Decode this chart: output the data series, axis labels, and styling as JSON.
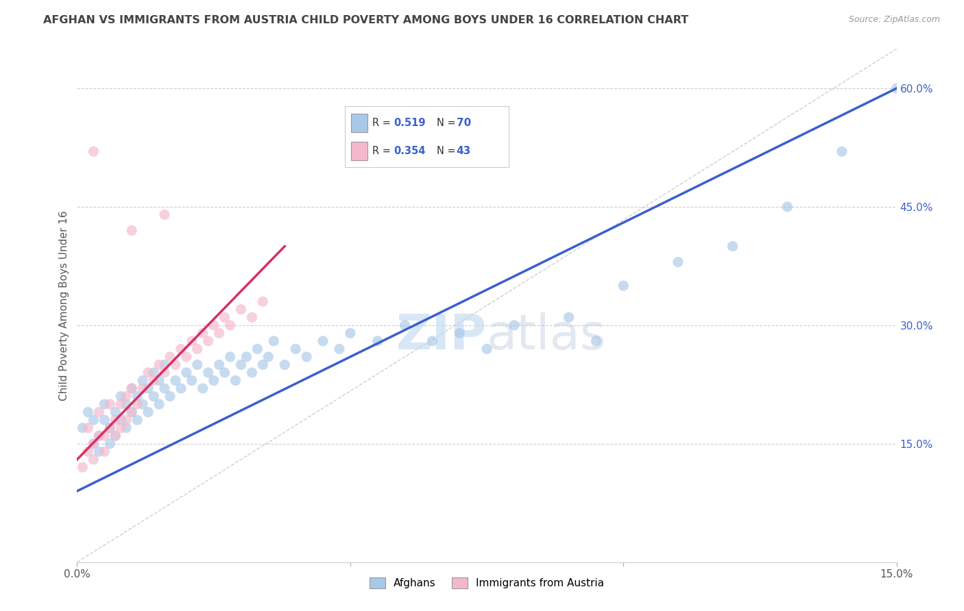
{
  "title": "AFGHAN VS IMMIGRANTS FROM AUSTRIA CHILD POVERTY AMONG BOYS UNDER 16 CORRELATION CHART",
  "source": "Source: ZipAtlas.com",
  "ylabel": "Child Poverty Among Boys Under 16",
  "xlim": [
    0.0,
    0.15
  ],
  "ylim": [
    0.0,
    0.65
  ],
  "xticks": [
    0.0,
    0.15
  ],
  "xtick_labels": [
    "0.0%",
    "15.0%"
  ],
  "ytick_positions": [
    0.15,
    0.3,
    0.45,
    0.6
  ],
  "ytick_labels": [
    "15.0%",
    "30.0%",
    "45.0%",
    "60.0%"
  ],
  "blue_color": "#a8c8e8",
  "pink_color": "#f4b8cc",
  "blue_line_color": "#3a5fcd",
  "pink_line_color": "#d63060",
  "legend_blue_label": "Afghans",
  "legend_pink_label": "Immigrants from Austria",
  "R_blue": 0.519,
  "N_blue": 70,
  "R_pink": 0.354,
  "N_pink": 43,
  "watermark_zip": "ZIP",
  "watermark_atlas": "atlas",
  "background_color": "#ffffff",
  "grid_color": "#cccccc",
  "title_color": "#444444",
  "blue_scatter_x": [
    0.001,
    0.002,
    0.003,
    0.003,
    0.004,
    0.004,
    0.005,
    0.005,
    0.006,
    0.006,
    0.007,
    0.007,
    0.008,
    0.008,
    0.009,
    0.009,
    0.01,
    0.01,
    0.011,
    0.011,
    0.012,
    0.012,
    0.013,
    0.013,
    0.014,
    0.014,
    0.015,
    0.015,
    0.016,
    0.016,
    0.017,
    0.018,
    0.019,
    0.02,
    0.021,
    0.022,
    0.023,
    0.024,
    0.025,
    0.026,
    0.027,
    0.028,
    0.029,
    0.03,
    0.031,
    0.032,
    0.033,
    0.034,
    0.035,
    0.036,
    0.038,
    0.04,
    0.042,
    0.045,
    0.048,
    0.05,
    0.055,
    0.06,
    0.065,
    0.07,
    0.075,
    0.08,
    0.09,
    0.095,
    0.1,
    0.11,
    0.12,
    0.13,
    0.14,
    0.15
  ],
  "blue_scatter_y": [
    0.17,
    0.19,
    0.15,
    0.18,
    0.14,
    0.16,
    0.18,
    0.2,
    0.15,
    0.17,
    0.16,
    0.19,
    0.18,
    0.21,
    0.17,
    0.2,
    0.19,
    0.22,
    0.18,
    0.21,
    0.2,
    0.23,
    0.19,
    0.22,
    0.21,
    0.24,
    0.2,
    0.23,
    0.22,
    0.25,
    0.21,
    0.23,
    0.22,
    0.24,
    0.23,
    0.25,
    0.22,
    0.24,
    0.23,
    0.25,
    0.24,
    0.26,
    0.23,
    0.25,
    0.26,
    0.24,
    0.27,
    0.25,
    0.26,
    0.28,
    0.25,
    0.27,
    0.26,
    0.28,
    0.27,
    0.29,
    0.28,
    0.3,
    0.28,
    0.29,
    0.27,
    0.3,
    0.31,
    0.28,
    0.35,
    0.38,
    0.4,
    0.45,
    0.52,
    0.6
  ],
  "pink_scatter_x": [
    0.001,
    0.002,
    0.002,
    0.003,
    0.003,
    0.004,
    0.004,
    0.005,
    0.005,
    0.006,
    0.006,
    0.007,
    0.007,
    0.008,
    0.008,
    0.009,
    0.009,
    0.01,
    0.01,
    0.011,
    0.012,
    0.013,
    0.014,
    0.015,
    0.016,
    0.017,
    0.018,
    0.019,
    0.02,
    0.021,
    0.022,
    0.023,
    0.024,
    0.025,
    0.026,
    0.027,
    0.028,
    0.03,
    0.032,
    0.034,
    0.003,
    0.01,
    0.016
  ],
  "pink_scatter_y": [
    0.12,
    0.14,
    0.17,
    0.13,
    0.15,
    0.16,
    0.19,
    0.14,
    0.16,
    0.17,
    0.2,
    0.16,
    0.18,
    0.17,
    0.2,
    0.18,
    0.21,
    0.19,
    0.22,
    0.2,
    0.22,
    0.24,
    0.23,
    0.25,
    0.24,
    0.26,
    0.25,
    0.27,
    0.26,
    0.28,
    0.27,
    0.29,
    0.28,
    0.3,
    0.29,
    0.31,
    0.3,
    0.32,
    0.31,
    0.33,
    0.52,
    0.42,
    0.44
  ],
  "blue_line_x": [
    0.0,
    0.15
  ],
  "blue_line_y": [
    0.09,
    0.6
  ],
  "pink_line_x": [
    0.0,
    0.038
  ],
  "pink_line_y": [
    0.13,
    0.4
  ]
}
